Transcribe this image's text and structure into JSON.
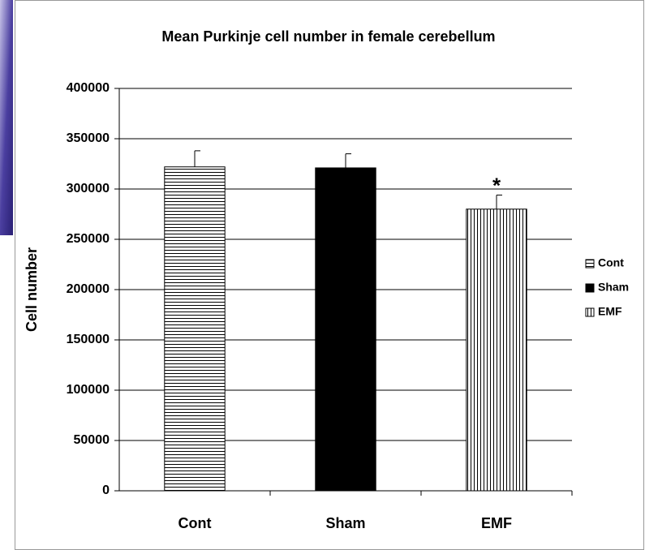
{
  "chart_data": {
    "type": "bar",
    "title": "Mean Purkinje cell number in female cerebellum",
    "y_label": "Cell number",
    "categories": [
      "Cont",
      "Sham",
      "EMF"
    ],
    "values": [
      322000,
      321000,
      280000
    ],
    "errors": [
      16000,
      14000,
      14000
    ],
    "patterns": [
      "horizontal",
      "solid",
      "vertical"
    ],
    "color": "#000000",
    "ylim": [
      0,
      400000
    ],
    "yticks": [
      0,
      50000,
      100000,
      150000,
      200000,
      250000,
      300000,
      350000,
      400000
    ],
    "grid": true,
    "legend": "right",
    "annotations": [
      {
        "text": "*",
        "category": "EMF"
      }
    ]
  }
}
